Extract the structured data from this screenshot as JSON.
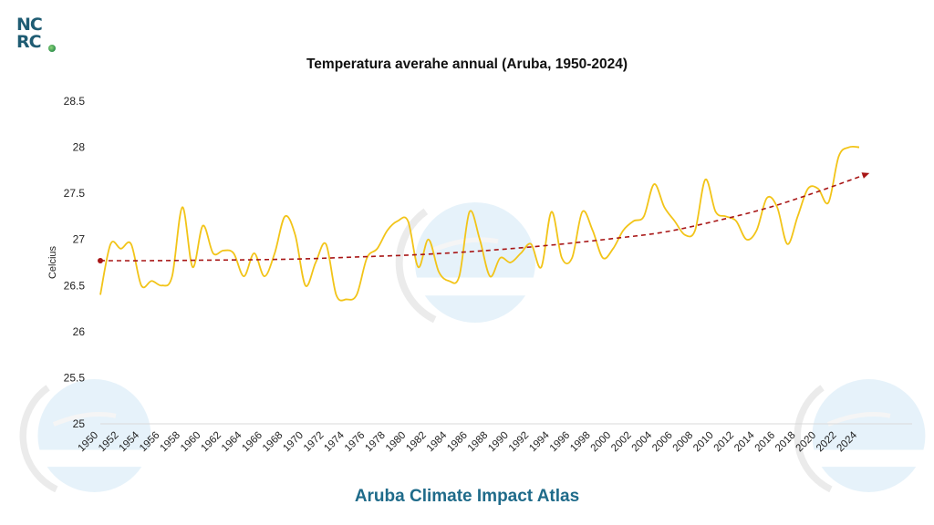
{
  "logo": {
    "line1": "NC",
    "line2": "RC",
    "color": "#1f5c73"
  },
  "footer": {
    "title": "Aruba Climate Impact Atlas",
    "color": "#1f6b8a"
  },
  "chart_data": {
    "type": "line",
    "title": "Temperatura averahe annual (Aruba, 1950-2024)",
    "ylabel": "Celcius",
    "xlabel": "",
    "ylim": [
      25,
      28.5
    ],
    "yticks": [
      25,
      25.5,
      26,
      26.5,
      27,
      27.5,
      28,
      28.5
    ],
    "xlim": [
      1950,
      2024
    ],
    "xticks": [
      1950,
      1952,
      1954,
      1956,
      1958,
      1960,
      1962,
      1964,
      1966,
      1968,
      1970,
      1972,
      1974,
      1976,
      1978,
      1980,
      1982,
      1984,
      1986,
      1988,
      1990,
      1992,
      1994,
      1996,
      1998,
      2000,
      2002,
      2004,
      2006,
      2008,
      2010,
      2012,
      2014,
      2016,
      2018,
      2020,
      2022,
      2024
    ],
    "grid": false,
    "legend": "none",
    "series": [
      {
        "style": "smooth solid line",
        "color": "#f2c418",
        "x": [
          1950,
          1951,
          1952,
          1953,
          1954,
          1955,
          1956,
          1957,
          1958,
          1959,
          1960,
          1961,
          1962,
          1963,
          1964,
          1965,
          1966,
          1967,
          1968,
          1969,
          1970,
          1971,
          1972,
          1973,
          1974,
          1975,
          1976,
          1977,
          1978,
          1979,
          1980,
          1981,
          1982,
          1983,
          1984,
          1985,
          1986,
          1987,
          1988,
          1989,
          1990,
          1991,
          1992,
          1993,
          1994,
          1995,
          1996,
          1997,
          1998,
          1999,
          2000,
          2001,
          2002,
          2003,
          2004,
          2005,
          2006,
          2007,
          2008,
          2009,
          2010,
          2011,
          2012,
          2013,
          2014,
          2015,
          2016,
          2017,
          2018,
          2019,
          2020,
          2021,
          2022,
          2023,
          2024
        ],
        "values": [
          26.4,
          26.95,
          26.9,
          26.95,
          26.5,
          26.55,
          26.5,
          26.6,
          27.35,
          26.7,
          27.15,
          26.85,
          26.88,
          26.85,
          26.6,
          26.85,
          26.6,
          26.85,
          27.25,
          27.05,
          26.5,
          26.75,
          26.95,
          26.4,
          26.35,
          26.4,
          26.8,
          26.9,
          27.1,
          27.2,
          27.2,
          26.7,
          27.0,
          26.65,
          26.55,
          26.6,
          27.3,
          27.0,
          26.6,
          26.8,
          26.75,
          26.85,
          26.95,
          26.7,
          27.3,
          26.8,
          26.8,
          27.3,
          27.1,
          26.8,
          26.9,
          27.1,
          27.2,
          27.25,
          27.6,
          27.35,
          27.2,
          27.05,
          27.1,
          27.65,
          27.3,
          27.25,
          27.2,
          27.0,
          27.1,
          27.45,
          27.35,
          26.95,
          27.25,
          27.55,
          27.55,
          27.4,
          27.9,
          28.0,
          28.0
        ]
      },
      {
        "style": "dashed trend line with arrow",
        "color": "#a81616",
        "x": [
          1950,
          1955,
          1960,
          1965,
          1970,
          1975,
          1980,
          1985,
          1990,
          1995,
          2000,
          2005,
          2010,
          2015,
          2020,
          2025
        ],
        "values": [
          26.77,
          26.77,
          26.775,
          26.78,
          26.79,
          26.81,
          26.83,
          26.86,
          26.9,
          26.95,
          27.01,
          27.08,
          27.2,
          27.34,
          27.52,
          27.72
        ]
      }
    ]
  }
}
